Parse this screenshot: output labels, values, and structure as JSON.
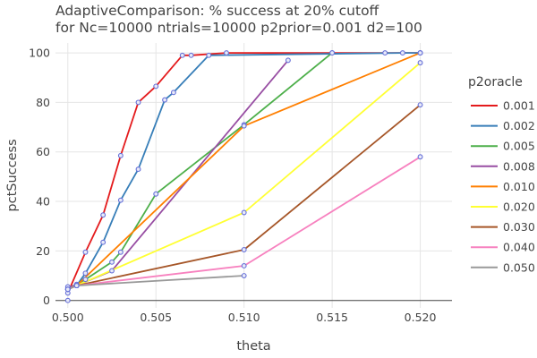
{
  "chart_data": {
    "type": "line",
    "title": "AdaptiveComparison: % success at 20% cutoff",
    "subtitle": "for Nc=10000 ntrials=10000 p2prior=0.001 d2=100",
    "xlabel": "theta",
    "ylabel": "pctSuccess",
    "xlim": [
      0.4993,
      0.5218
    ],
    "ylim": [
      -3,
      104
    ],
    "xticks": [
      0.5,
      0.505,
      0.51,
      0.515,
      0.52
    ],
    "xtick_labels": [
      "0.500",
      "0.505",
      "0.510",
      "0.515",
      "0.520"
    ],
    "yticks": [
      0,
      20,
      40,
      60,
      80,
      100
    ],
    "ytick_labels": [
      "0",
      "20",
      "40",
      "60",
      "80",
      "100"
    ],
    "grid": true,
    "legend_title": "p2oracle",
    "legend_position": "right",
    "marker_color": "#6670d8",
    "series": [
      {
        "name": "0.001",
        "color": "#e41a1c",
        "x": [
          0.5,
          0.501,
          0.502,
          0.503,
          0.504,
          0.505,
          0.5065,
          0.507,
          0.509,
          0.515,
          0.518,
          0.52
        ],
        "y": [
          3,
          19.5,
          34.5,
          58.5,
          80,
          86.5,
          99,
          99,
          100,
          100,
          100,
          100
        ]
      },
      {
        "name": "0.002",
        "color": "#377eb8",
        "x": [
          0.5,
          0.5005,
          0.501,
          0.502,
          0.503,
          0.504,
          0.5055,
          0.506,
          0.508,
          0.519,
          0.52
        ],
        "y": [
          4.5,
          6,
          11,
          23.5,
          40.5,
          53,
          81,
          84,
          99,
          100,
          100
        ]
      },
      {
        "name": "0.005",
        "color": "#4daf4a",
        "x": [
          0.5,
          0.5005,
          0.501,
          0.5025,
          0.503,
          0.505,
          0.51,
          0.515
        ],
        "y": [
          5,
          6.5,
          8.5,
          15.5,
          19.5,
          43,
          71,
          100
        ]
      },
      {
        "name": "0.008",
        "color": "#984ea3",
        "x": [
          0.5,
          0.5005,
          0.5025,
          0.5125
        ],
        "y": [
          5.5,
          6,
          12,
          97
        ]
      },
      {
        "name": "0.010",
        "color": "#ff7f00",
        "x": [
          0.5,
          0.5005,
          0.51,
          0.52
        ],
        "y": [
          4.5,
          6,
          70.5,
          100
        ]
      },
      {
        "name": "0.020",
        "color": "#ffff33",
        "x": [
          0.5,
          0.5005,
          0.51,
          0.52
        ],
        "y": [
          4.5,
          6,
          35.5,
          96
        ]
      },
      {
        "name": "0.030",
        "color": "#a65628",
        "x": [
          0.5,
          0.5005,
          0.51,
          0.52
        ],
        "y": [
          4.5,
          6,
          20.5,
          79
        ]
      },
      {
        "name": "0.040",
        "color": "#f781bf",
        "x": [
          0.5,
          0.5005,
          0.51,
          0.52
        ],
        "y": [
          4.5,
          6,
          14,
          58
        ]
      },
      {
        "name": "0.050",
        "color": "#999999",
        "x": [
          0.5,
          0.5005,
          0.51
        ],
        "y": [
          4.5,
          6,
          10
        ]
      }
    ],
    "extra_points": [
      {
        "x": 0.5,
        "y": 0
      }
    ]
  }
}
